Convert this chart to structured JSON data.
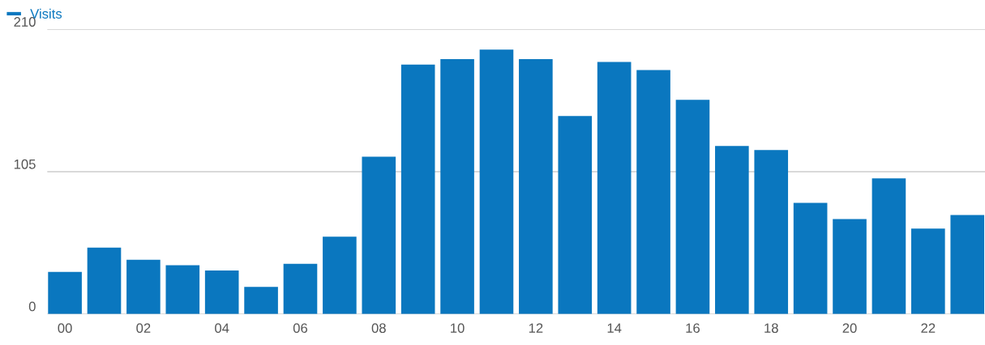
{
  "chart_data": {
    "type": "bar",
    "categories": [
      "00",
      null,
      "02",
      null,
      "04",
      null,
      "06",
      null,
      "08",
      null,
      "10",
      null,
      "12",
      null,
      "14",
      null,
      "16",
      null,
      "18",
      null,
      "20",
      null,
      "22",
      null
    ],
    "series": [
      {
        "name": "Visits",
        "color": "#0a77bf",
        "values": [
          31,
          49,
          40,
          36,
          32,
          20,
          37,
          57,
          116,
          184,
          188,
          195,
          188,
          146,
          186,
          180,
          158,
          124,
          121,
          82,
          70,
          100,
          63,
          73
        ]
      }
    ],
    "ylim": [
      0,
      210
    ],
    "yticks": [
      0,
      105,
      210
    ],
    "grid": "y",
    "legend": "top left"
  }
}
